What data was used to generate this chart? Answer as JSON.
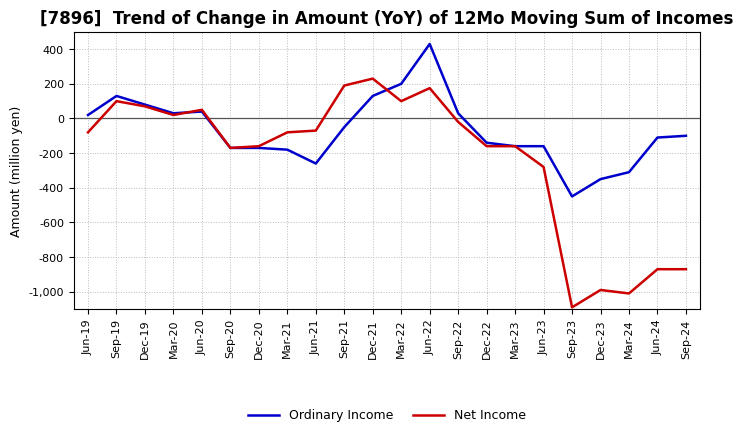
{
  "title": "[7896]  Trend of Change in Amount (YoY) of 12Mo Moving Sum of Incomes",
  "ylabel": "Amount (million yen)",
  "x_labels": [
    "Jun-19",
    "Sep-19",
    "Dec-19",
    "Mar-20",
    "Jun-20",
    "Sep-20",
    "Dec-20",
    "Mar-21",
    "Jun-21",
    "Sep-21",
    "Dec-21",
    "Mar-22",
    "Jun-22",
    "Sep-22",
    "Dec-22",
    "Mar-23",
    "Jun-23",
    "Sep-23",
    "Dec-23",
    "Mar-24",
    "Jun-24",
    "Sep-24"
  ],
  "ordinary_income": [
    20,
    130,
    80,
    30,
    40,
    -170,
    -170,
    -180,
    -260,
    -50,
    130,
    200,
    430,
    30,
    -140,
    -160,
    -160,
    -450,
    -350,
    -310,
    -110,
    -100
  ],
  "net_income": [
    -80,
    100,
    70,
    20,
    50,
    -170,
    -160,
    -80,
    -70,
    190,
    230,
    100,
    175,
    -20,
    -160,
    -160,
    -280,
    -1090,
    -990,
    -1010,
    -870,
    -870
  ],
  "ordinary_color": "#0000CC",
  "net_color": "#CC0000",
  "bg_color": "#FFFFFF",
  "plot_bg_color": "#FFFFFF",
  "grid_color": "#BBBBBB",
  "ylim": [
    -1100,
    500
  ],
  "yticks": [
    -1000,
    -800,
    -600,
    -400,
    -200,
    0,
    200,
    400
  ],
  "title_fontsize": 12,
  "axis_label_fontsize": 9,
  "tick_fontsize": 8,
  "legend_fontsize": 9,
  "line_width": 1.8
}
